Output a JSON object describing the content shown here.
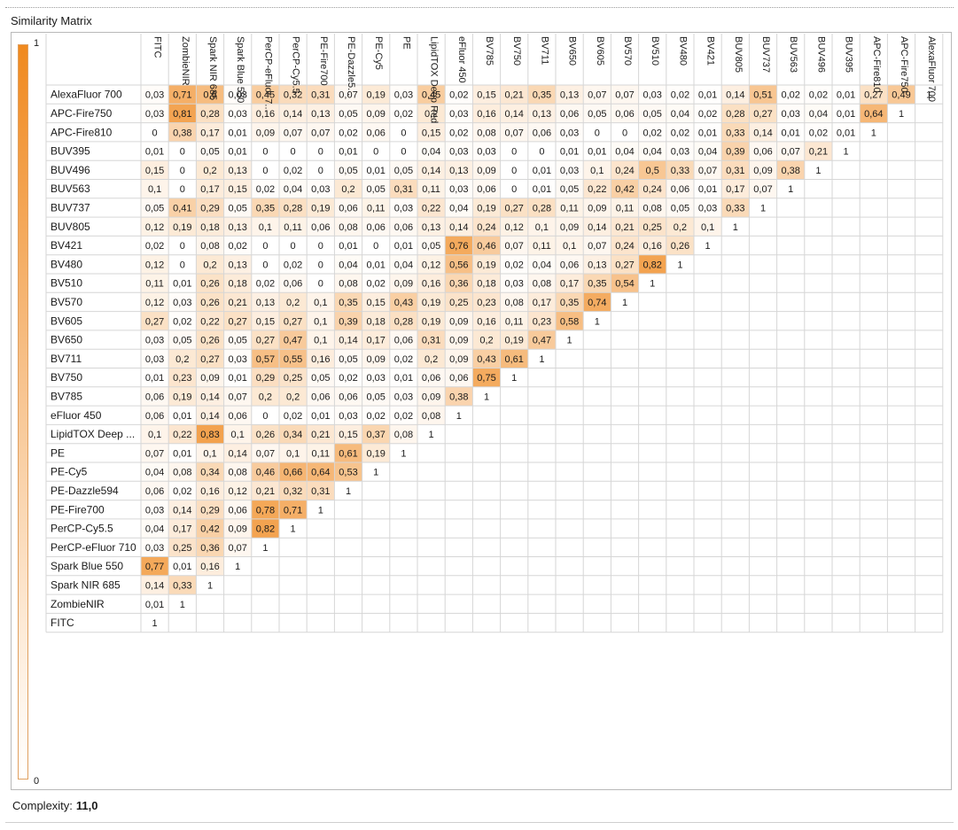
{
  "panel": {
    "title": "Similarity Matrix",
    "complexity_label": "Complexity:",
    "complexity_value": "11,0"
  },
  "colors": {
    "scale_max": "#f0891e",
    "scale_min": "#ffffff",
    "grid": "#d6d6d6"
  },
  "chart_data": {
    "type": "heatmap",
    "title": "",
    "color_scale": {
      "min": 0,
      "max": 1,
      "min_label": "0",
      "max_label": "1"
    },
    "columns": [
      "FITC",
      "ZombieNIR",
      "Spark NIR 685",
      "Spark Blue 550",
      "PerCP-eFluor 7...",
      "PerCP-Cy5.5",
      "PE-Fire700",
      "PE-Dazzle5...",
      "PE-Cy5",
      "PE",
      "LipidTOX Deep Red",
      "eFluor 450",
      "BV785",
      "BV750",
      "BV711",
      "BV650",
      "BV605",
      "BV570",
      "BV510",
      "BV480",
      "BV421",
      "BUV805",
      "BUV737",
      "BUV563",
      "BUV496",
      "BUV395",
      "APC-Fire810",
      "APC-Fire750",
      "AlexaFluor 700"
    ],
    "rows": [
      {
        "label": "AlexaFluor 700",
        "values": [
          "0,03",
          "0,71",
          "0,6",
          "0,03",
          "0,45",
          "0,32",
          "0,31",
          "0,07",
          "0,19",
          "0,03",
          "0,45",
          "0,02",
          "0,15",
          "0,21",
          "0,35",
          "0,13",
          "0,07",
          "0,07",
          "0,03",
          "0,02",
          "0,01",
          "0,14",
          "0,51",
          "0,02",
          "0,02",
          "0,01",
          "0,27",
          "0,49",
          "1"
        ]
      },
      {
        "label": "APC-Fire750",
        "values": [
          "0,03",
          "0,81",
          "0,28",
          "0,03",
          "0,16",
          "0,14",
          "0,13",
          "0,05",
          "0,09",
          "0,02",
          "0,2",
          "0,03",
          "0,16",
          "0,14",
          "0,13",
          "0,06",
          "0,05",
          "0,06",
          "0,05",
          "0,04",
          "0,02",
          "0,28",
          "0,27",
          "0,03",
          "0,04",
          "0,01",
          "0,64",
          "1"
        ]
      },
      {
        "label": "APC-Fire810",
        "values": [
          "0",
          "0,38",
          "0,17",
          "0,01",
          "0,09",
          "0,07",
          "0,07",
          "0,02",
          "0,06",
          "0",
          "0,15",
          "0,02",
          "0,08",
          "0,07",
          "0,06",
          "0,03",
          "0",
          "0",
          "0,02",
          "0,02",
          "0,01",
          "0,33",
          "0,14",
          "0,01",
          "0,02",
          "0,01",
          "1"
        ]
      },
      {
        "label": "BUV395",
        "values": [
          "0,01",
          "0",
          "0,05",
          "0,01",
          "0",
          "0",
          "0",
          "0,01",
          "0",
          "0",
          "0,04",
          "0,03",
          "0,03",
          "0",
          "0",
          "0,01",
          "0,01",
          "0,04",
          "0,04",
          "0,03",
          "0,04",
          "0,39",
          "0,06",
          "0,07",
          "0,21",
          "1"
        ]
      },
      {
        "label": "BUV496",
        "values": [
          "0,15",
          "0",
          "0,2",
          "0,13",
          "0",
          "0,02",
          "0",
          "0,05",
          "0,01",
          "0,05",
          "0,14",
          "0,13",
          "0,09",
          "0",
          "0,01",
          "0,03",
          "0,1",
          "0,24",
          "0,5",
          "0,33",
          "0,07",
          "0,31",
          "0,09",
          "0,38",
          "1"
        ]
      },
      {
        "label": "BUV563",
        "values": [
          "0,1",
          "0",
          "0,17",
          "0,15",
          "0,02",
          "0,04",
          "0,03",
          "0,2",
          "0,05",
          "0,31",
          "0,11",
          "0,03",
          "0,06",
          "0",
          "0,01",
          "0,05",
          "0,22",
          "0,42",
          "0,24",
          "0,06",
          "0,01",
          "0,17",
          "0,07",
          "1"
        ]
      },
      {
        "label": "BUV737",
        "values": [
          "0,05",
          "0,41",
          "0,29",
          "0,05",
          "0,35",
          "0,28",
          "0,19",
          "0,06",
          "0,11",
          "0,03",
          "0,22",
          "0,04",
          "0,19",
          "0,27",
          "0,28",
          "0,11",
          "0,09",
          "0,11",
          "0,08",
          "0,05",
          "0,03",
          "0,33",
          "1"
        ]
      },
      {
        "label": "BUV805",
        "values": [
          "0,12",
          "0,19",
          "0,18",
          "0,13",
          "0,1",
          "0,11",
          "0,06",
          "0,08",
          "0,06",
          "0,06",
          "0,13",
          "0,14",
          "0,24",
          "0,12",
          "0,1",
          "0,09",
          "0,14",
          "0,21",
          "0,25",
          "0,2",
          "0,1",
          "1"
        ]
      },
      {
        "label": "BV421",
        "values": [
          "0,02",
          "0",
          "0,08",
          "0,02",
          "0",
          "0",
          "0",
          "0,01",
          "0",
          "0,01",
          "0,05",
          "0,76",
          "0,46",
          "0,07",
          "0,11",
          "0,1",
          "0,07",
          "0,24",
          "0,16",
          "0,26",
          "1"
        ]
      },
      {
        "label": "BV480",
        "values": [
          "0,12",
          "0",
          "0,2",
          "0,13",
          "0",
          "0,02",
          "0",
          "0,04",
          "0,01",
          "0,04",
          "0,12",
          "0,56",
          "0,19",
          "0,02",
          "0,04",
          "0,06",
          "0,13",
          "0,27",
          "0,82",
          "1"
        ]
      },
      {
        "label": "BV510",
        "values": [
          "0,11",
          "0,01",
          "0,26",
          "0,18",
          "0,02",
          "0,06",
          "0",
          "0,08",
          "0,02",
          "0,09",
          "0,16",
          "0,36",
          "0,18",
          "0,03",
          "0,08",
          "0,17",
          "0,35",
          "0,54",
          "1"
        ]
      },
      {
        "label": "BV570",
        "values": [
          "0,12",
          "0,03",
          "0,26",
          "0,21",
          "0,13",
          "0,2",
          "0,1",
          "0,35",
          "0,15",
          "0,43",
          "0,19",
          "0,25",
          "0,23",
          "0,08",
          "0,17",
          "0,35",
          "0,74",
          "1"
        ]
      },
      {
        "label": "BV605",
        "values": [
          "0,27",
          "0,02",
          "0,22",
          "0,27",
          "0,15",
          "0,27",
          "0,1",
          "0,39",
          "0,18",
          "0,28",
          "0,19",
          "0,09",
          "0,16",
          "0,11",
          "0,23",
          "0,58",
          "1"
        ]
      },
      {
        "label": "BV650",
        "values": [
          "0,03",
          "0,05",
          "0,26",
          "0,05",
          "0,27",
          "0,47",
          "0,1",
          "0,14",
          "0,17",
          "0,06",
          "0,31",
          "0,09",
          "0,2",
          "0,19",
          "0,47",
          "1"
        ]
      },
      {
        "label": "BV711",
        "values": [
          "0,03",
          "0,2",
          "0,27",
          "0,03",
          "0,57",
          "0,55",
          "0,16",
          "0,05",
          "0,09",
          "0,02",
          "0,2",
          "0,09",
          "0,43",
          "0,61",
          "1"
        ]
      },
      {
        "label": "BV750",
        "values": [
          "0,01",
          "0,23",
          "0,09",
          "0,01",
          "0,29",
          "0,25",
          "0,05",
          "0,02",
          "0,03",
          "0,01",
          "0,06",
          "0,06",
          "0,75",
          "1"
        ]
      },
      {
        "label": "BV785",
        "values": [
          "0,06",
          "0,19",
          "0,14",
          "0,07",
          "0,2",
          "0,2",
          "0,06",
          "0,06",
          "0,05",
          "0,03",
          "0,09",
          "0,38",
          "1"
        ]
      },
      {
        "label": "eFluor 450",
        "values": [
          "0,06",
          "0,01",
          "0,14",
          "0,06",
          "0",
          "0,02",
          "0,01",
          "0,03",
          "0,02",
          "0,02",
          "0,08",
          "1"
        ]
      },
      {
        "label": "LipidTOX Deep ...",
        "values": [
          "0,1",
          "0,22",
          "0,83",
          "0,1",
          "0,26",
          "0,34",
          "0,21",
          "0,15",
          "0,37",
          "0,08",
          "1"
        ]
      },
      {
        "label": "PE",
        "values": [
          "0,07",
          "0,01",
          "0,1",
          "0,14",
          "0,07",
          "0,1",
          "0,11",
          "0,61",
          "0,19",
          "1"
        ]
      },
      {
        "label": "PE-Cy5",
        "values": [
          "0,04",
          "0,08",
          "0,34",
          "0,08",
          "0,46",
          "0,66",
          "0,64",
          "0,53",
          "1"
        ]
      },
      {
        "label": "PE-Dazzle594",
        "values": [
          "0,06",
          "0,02",
          "0,16",
          "0,12",
          "0,21",
          "0,32",
          "0,31",
          "1"
        ]
      },
      {
        "label": "PE-Fire700",
        "values": [
          "0,03",
          "0,14",
          "0,29",
          "0,06",
          "0,78",
          "0,71",
          "1"
        ]
      },
      {
        "label": "PerCP-Cy5.5",
        "values": [
          "0,04",
          "0,17",
          "0,42",
          "0,09",
          "0,82",
          "1"
        ]
      },
      {
        "label": "PerCP-eFluor 710",
        "values": [
          "0,03",
          "0,25",
          "0,36",
          "0,07",
          "1"
        ]
      },
      {
        "label": "Spark Blue 550",
        "values": [
          "0,77",
          "0,01",
          "0,16",
          "1"
        ]
      },
      {
        "label": "Spark NIR 685",
        "values": [
          "0,14",
          "0,33",
          "1"
        ]
      },
      {
        "label": "ZombieNIR",
        "values": [
          "0,01",
          "1"
        ]
      },
      {
        "label": "FITC",
        "values": [
          "1"
        ]
      }
    ]
  }
}
